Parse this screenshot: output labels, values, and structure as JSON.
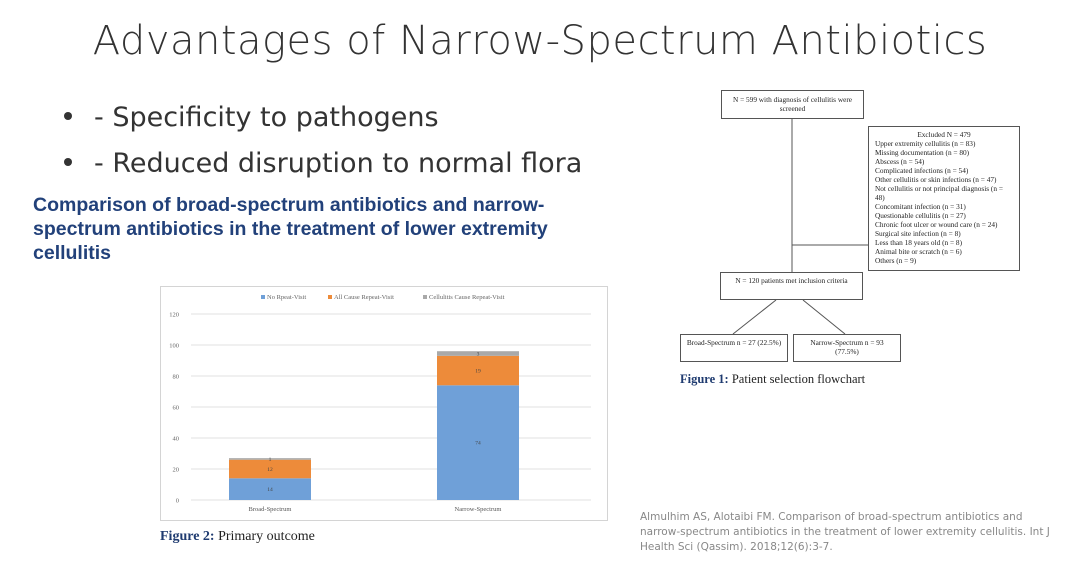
{
  "slide": {
    "title": "Advantages of Narrow-Spectrum Antibiotics",
    "bullets": [
      "- Specificity to pathogens",
      "- Reduced disruption to normal flora"
    ],
    "paper_title": "Comparison of broad-spectrum antibiotics and narrow-spectrum antibiotics in the treatment of lower extremity cellulitis",
    "citation": "Almulhim AS, Alotaibi FM. Comparison of broad-spectrum antibiotics and narrow-spectrum antibiotics in the treatment of lower extremity cellulitis. Int J Health Sci (Qassim). 2018;12(6):3-7."
  },
  "chart_data": {
    "type": "bar",
    "stacked": true,
    "categories": [
      "Broad-Spectrum",
      "Narrow-Spectrum"
    ],
    "series": [
      {
        "name": "No Rpeat-Visit",
        "values": [
          14,
          74
        ],
        "color": "#6fa0d8",
        "labels": [
          "14",
          "74"
        ]
      },
      {
        "name": "All Cause Repeat-Visit",
        "values": [
          12,
          19
        ],
        "color": "#ed8b3a",
        "labels": [
          "12",
          "19"
        ]
      },
      {
        "name": "Cellulitis Cause Repeat-Visit",
        "values": [
          1,
          3
        ],
        "color": "#a9a9a9",
        "labels": [
          "1",
          "3"
        ]
      }
    ],
    "ylim": [
      0,
      120
    ],
    "yticks": [
      0,
      20,
      40,
      60,
      80,
      100,
      120
    ],
    "grid": true,
    "legend": "top"
  },
  "figure2_caption": {
    "label": "Figure 2:",
    "text": " Primary outcome"
  },
  "flowchart": {
    "screened": "N = 599 with diagnosis of cellulitis were screened",
    "excluded_title": "Excluded N = 479",
    "excluded_items": [
      "Upper extremity cellulitis (n = 83)",
      "Missing documentation (n = 80)",
      "Abscess (n = 54)",
      "Complicated infections (n = 54)",
      "Other cellulitis or skin infections (n = 47)",
      "Not cellulitis or not principal diagnosis (n = 48)",
      "Concomitant infection (n = 31)",
      "Questionable cellulitis (n = 27)",
      "Chronic foot ulcer or wound care (n = 24)",
      "Surgical site infection (n = 8)",
      "Less than 18 years old (n = 8)",
      "Animal bite or scratch (n = 6)",
      "Others (n = 9)"
    ],
    "included": "N = 120 patients met inclusion criteria",
    "broad": "Broad-Spectrum n = 27 (22.5%)",
    "narrow": "Narrow-Spectrum n = 93 (77.5%)"
  },
  "figure1_caption": {
    "label": "Figure 1:",
    "text": " Patient selection flowchart"
  }
}
